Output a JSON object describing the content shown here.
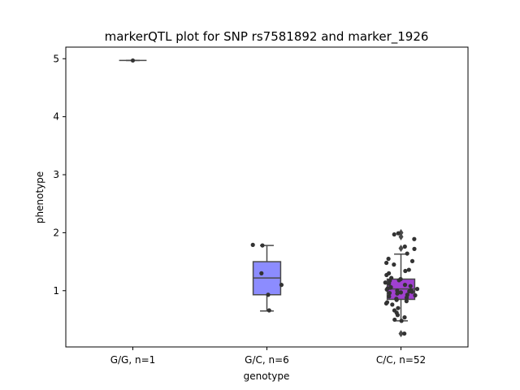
{
  "chart_data": {
    "type": "box",
    "title": "markerQTL plot for SNP rs7581892 and marker_1926",
    "xlabel": "genotype",
    "ylabel": "phenotype",
    "ylim": [
      0.03,
      5.2
    ],
    "yticks": [
      1,
      2,
      3,
      4,
      5
    ],
    "categories": [
      "G/G, n=1",
      "G/C, n=6",
      "C/C, n=52"
    ],
    "box_colors": [
      "#8c8cff",
      "#8c8cff",
      "#a040d0"
    ],
    "boxes": [
      {
        "q1": 4.97,
        "median": 4.97,
        "q3": 4.97,
        "whisker_low": 4.97,
        "whisker_high": 4.97,
        "outliers": []
      },
      {
        "q1": 0.93,
        "median": 1.22,
        "q3": 1.5,
        "whisker_low": 0.65,
        "whisker_high": 1.78,
        "outliers": []
      },
      {
        "q1": 0.85,
        "median": 1.03,
        "q3": 1.2,
        "whisker_low": 0.48,
        "whisker_high": 1.63,
        "outliers": [
          2.0,
          1.93,
          1.73,
          0.26
        ]
      }
    ],
    "points": [
      [
        4.97
      ],
      [
        1.79,
        1.78,
        1.3,
        1.1,
        0.93,
        0.66
      ],
      [
        1.99,
        1.97,
        1.89,
        1.76,
        1.72,
        1.64,
        1.55,
        1.51,
        1.48,
        1.45,
        1.36,
        1.34,
        1.3,
        1.27,
        1.22,
        1.2,
        1.18,
        1.17,
        1.14,
        1.12,
        1.1,
        1.08,
        1.06,
        1.05,
        1.04,
        1.03,
        1.02,
        1.01,
        1.0,
        0.99,
        0.98,
        0.97,
        0.96,
        0.95,
        0.93,
        0.92,
        0.9,
        0.88,
        0.86,
        0.84,
        0.82,
        0.8,
        0.78,
        0.76,
        0.7,
        0.66,
        0.62,
        0.58,
        0.54,
        0.5,
        0.48,
        0.26
      ]
    ]
  }
}
